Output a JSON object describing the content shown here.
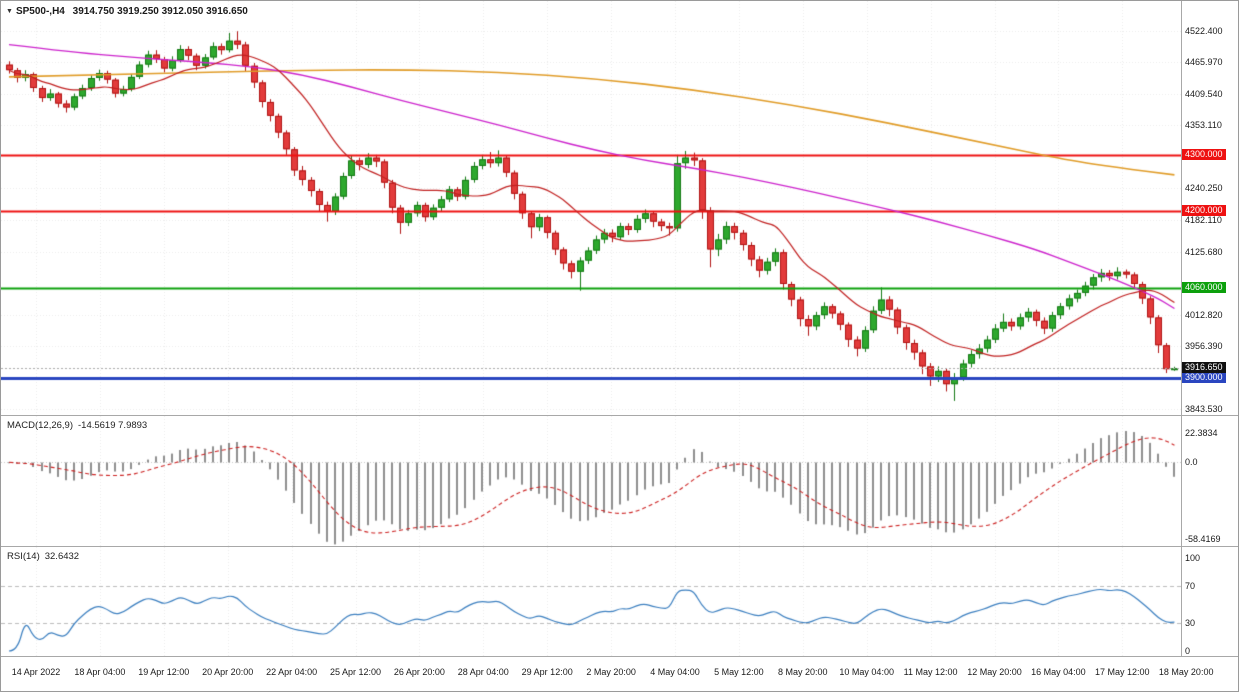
{
  "title": {
    "symbol": "SP500-,H4",
    "ohlc": "3914.750 3919.250 3912.050 3916.650",
    "expand_icon": "down-triangle"
  },
  "colors": {
    "up_fill": "#2ea82e",
    "up_border": "#157a15",
    "down_fill": "#e23b3b",
    "down_border": "#b01414",
    "ma_fast_red": "#c02020",
    "ma_medium_magenta": "#cc22cc",
    "ma_slow_orange": "#e09c28",
    "level_red": "#ee1111",
    "level_green": "#0ca00c",
    "level_blue": "#2a46c0",
    "current_bg": "#111111",
    "current_line": "#aaaaaa",
    "macd_hist": "#8f8f8f",
    "macd_signal": "#cc2222",
    "rsi_line": "#3a7ebf",
    "grid": "#ececec",
    "dash_level": "#bbbbbb"
  },
  "chart_data": [
    {
      "type": "candlestick",
      "title": "SP500-,H4",
      "ohlc_display": {
        "open": "3914.750",
        "high": "3919.250",
        "low": "3912.050",
        "close": "3916.650"
      },
      "y_range": [
        3832.7,
        4576.3
      ],
      "y_ticks": [
        {
          "v": 4522.4,
          "t": "4522.400"
        },
        {
          "v": 4465.97,
          "t": "4465.970"
        },
        {
          "v": 4409.54,
          "t": "4409.540"
        },
        {
          "v": 4353.11,
          "t": "4353.110"
        },
        {
          "v": 4240.25,
          "t": "4240.250"
        },
        {
          "v": 4182.11,
          "t": "4182.110"
        },
        {
          "v": 4125.68,
          "t": "4125.680"
        },
        {
          "v": 4012.82,
          "t": "4012.820"
        },
        {
          "v": 3956.39,
          "t": "3956.390"
        },
        {
          "v": 3843.53,
          "t": "3843.530"
        }
      ],
      "levels": [
        {
          "value": 4300,
          "label": "4300.000",
          "color": "#ee1111",
          "width": 2
        },
        {
          "value": 4200,
          "label": "4200.000",
          "color": "#ee1111",
          "width": 2
        },
        {
          "value": 4060,
          "label": "4060.000",
          "color": "#0ca00c",
          "width": 2
        },
        {
          "value": 3900,
          "label": "3900.000",
          "color": "#2a46c0",
          "width": 3
        }
      ],
      "current_price": {
        "value": 3916.65,
        "label": "3916.650"
      },
      "x_labels": [
        "14 Apr 2022",
        "18 Apr 04:00",
        "19 Apr 12:00",
        "20 Apr 20:00",
        "22 Apr 04:00",
        "25 Apr 12:00",
        "26 Apr 20:00",
        "28 Apr 04:00",
        "29 Apr 12:00",
        "2 May 20:00",
        "4 May 04:00",
        "5 May 12:00",
        "8 May 20:00",
        "10 May 04:00",
        "11 May 12:00",
        "12 May 20:00",
        "16 May 04:00",
        "17 May 12:00",
        "18 May 20:00"
      ],
      "candles": [
        [
          4462,
          4468,
          4446,
          4452
        ],
        [
          4452,
          4456,
          4430,
          4438
        ],
        [
          4438,
          4452,
          4432,
          4445
        ],
        [
          4445,
          4448,
          4413,
          4420
        ],
        [
          4420,
          4424,
          4395,
          4402
        ],
        [
          4402,
          4418,
          4397,
          4410
        ],
        [
          4410,
          4413,
          4385,
          4392
        ],
        [
          4392,
          4398,
          4376,
          4385
        ],
        [
          4385,
          4410,
          4380,
          4405
        ],
        [
          4405,
          4426,
          4400,
          4420
        ],
        [
          4420,
          4443,
          4415,
          4438
        ],
        [
          4438,
          4453,
          4433,
          4447
        ],
        [
          4447,
          4451,
          4428,
          4435
        ],
        [
          4435,
          4438,
          4403,
          4410
        ],
        [
          4410,
          4424,
          4405,
          4418
        ],
        [
          4418,
          4445,
          4414,
          4440
        ],
        [
          4440,
          4468,
          4436,
          4462
        ],
        [
          4462,
          4487,
          4457,
          4480
        ],
        [
          4480,
          4488,
          4465,
          4472
        ],
        [
          4472,
          4476,
          4448,
          4455
        ],
        [
          4455,
          4477,
          4450,
          4470
        ],
        [
          4470,
          4497,
          4466,
          4490
        ],
        [
          4490,
          4495,
          4470,
          4478
        ],
        [
          4478,
          4482,
          4452,
          4460
        ],
        [
          4460,
          4481,
          4455,
          4475
        ],
        [
          4475,
          4502,
          4471,
          4495
        ],
        [
          4495,
          4500,
          4480,
          4488
        ],
        [
          4488,
          4519,
          4484,
          4505
        ],
        [
          4505,
          4522,
          4490,
          4498
        ],
        [
          4498,
          4503,
          4450,
          4460
        ],
        [
          4460,
          4465,
          4420,
          4430
        ],
        [
          4430,
          4434,
          4385,
          4395
        ],
        [
          4395,
          4400,
          4360,
          4370
        ],
        [
          4370,
          4374,
          4330,
          4340
        ],
        [
          4340,
          4344,
          4300,
          4310
        ],
        [
          4310,
          4314,
          4262,
          4272
        ],
        [
          4272,
          4280,
          4245,
          4255
        ],
        [
          4255,
          4260,
          4225,
          4235
        ],
        [
          4235,
          4239,
          4198,
          4210
        ],
        [
          4210,
          4216,
          4180,
          4198
        ],
        [
          4198,
          4231,
          4192,
          4225
        ],
        [
          4225,
          4268,
          4220,
          4262
        ],
        [
          4262,
          4298,
          4257,
          4290
        ],
        [
          4290,
          4295,
          4272,
          4282
        ],
        [
          4282,
          4303,
          4276,
          4295
        ],
        [
          4295,
          4300,
          4278,
          4288
        ],
        [
          4288,
          4292,
          4240,
          4250
        ],
        [
          4250,
          4255,
          4195,
          4205
        ],
        [
          4205,
          4210,
          4158,
          4178
        ],
        [
          4178,
          4201,
          4172,
          4195
        ],
        [
          4195,
          4216,
          4189,
          4210
        ],
        [
          4210,
          4214,
          4180,
          4188
        ],
        [
          4188,
          4211,
          4183,
          4205
        ],
        [
          4205,
          4226,
          4199,
          4220
        ],
        [
          4220,
          4244,
          4215,
          4238
        ],
        [
          4238,
          4242,
          4217,
          4225
        ],
        [
          4225,
          4261,
          4220,
          4255
        ],
        [
          4255,
          4287,
          4250,
          4280
        ],
        [
          4280,
          4300,
          4274,
          4292
        ],
        [
          4292,
          4305,
          4277,
          4285
        ],
        [
          4285,
          4308,
          4279,
          4295
        ],
        [
          4295,
          4298,
          4260,
          4268
        ],
        [
          4268,
          4272,
          4220,
          4230
        ],
        [
          4230,
          4234,
          4185,
          4195
        ],
        [
          4195,
          4199,
          4150,
          4170
        ],
        [
          4170,
          4194,
          4163,
          4188
        ],
        [
          4188,
          4191,
          4150,
          4160
        ],
        [
          4160,
          4164,
          4120,
          4130
        ],
        [
          4130,
          4134,
          4094,
          4105
        ],
        [
          4105,
          4110,
          4078,
          4090
        ],
        [
          4090,
          4116,
          4056,
          4110
        ],
        [
          4110,
          4134,
          4104,
          4128
        ],
        [
          4128,
          4155,
          4122,
          4148
        ],
        [
          4148,
          4167,
          4141,
          4160
        ],
        [
          4160,
          4166,
          4143,
          4152
        ],
        [
          4152,
          4178,
          4147,
          4172
        ],
        [
          4172,
          4177,
          4156,
          4165
        ],
        [
          4165,
          4192,
          4160,
          4185
        ],
        [
          4185,
          4202,
          4178,
          4195
        ],
        [
          4195,
          4199,
          4170,
          4180
        ],
        [
          4180,
          4185,
          4163,
          4172
        ],
        [
          4172,
          4178,
          4155,
          4168
        ],
        [
          4168,
          4300,
          4162,
          4285
        ],
        [
          4285,
          4307,
          4275,
          4295
        ],
        [
          4295,
          4304,
          4280,
          4290
        ],
        [
          4290,
          4294,
          4185,
          4200
        ],
        [
          4200,
          4206,
          4098,
          4130
        ],
        [
          4130,
          4158,
          4118,
          4148
        ],
        [
          4148,
          4180,
          4140,
          4172
        ],
        [
          4172,
          4178,
          4148,
          4160
        ],
        [
          4160,
          4165,
          4128,
          4138
        ],
        [
          4138,
          4143,
          4100,
          4112
        ],
        [
          4112,
          4118,
          4080,
          4092
        ],
        [
          4092,
          4115,
          4085,
          4108
        ],
        [
          4108,
          4132,
          4100,
          4125
        ],
        [
          4125,
          4130,
          4058,
          4068
        ],
        [
          4068,
          4072,
          4028,
          4040
        ],
        [
          4040,
          4045,
          3992,
          4005
        ],
        [
          4005,
          4012,
          3975,
          3992
        ],
        [
          3992,
          4018,
          3985,
          4012
        ],
        [
          4012,
          4035,
          4005,
          4028
        ],
        [
          4028,
          4032,
          4006,
          4015
        ],
        [
          4015,
          4019,
          3985,
          3995
        ],
        [
          3995,
          3999,
          3955,
          3968
        ],
        [
          3968,
          3974,
          3938,
          3952
        ],
        [
          3952,
          3992,
          3946,
          3985
        ],
        [
          3985,
          4028,
          3980,
          4020
        ],
        [
          4020,
          4062,
          4014,
          4040
        ],
        [
          4040,
          4046,
          4010,
          4022
        ],
        [
          4022,
          4026,
          3978,
          3990
        ],
        [
          3990,
          3995,
          3950,
          3962
        ],
        [
          3962,
          3968,
          3932,
          3945
        ],
        [
          3945,
          3950,
          3906,
          3920
        ],
        [
          3920,
          3926,
          3885,
          3902
        ],
        [
          3902,
          3920,
          3892,
          3912
        ],
        [
          3912,
          3916,
          3875,
          3888
        ],
        [
          3888,
          3908,
          3858,
          3900
        ],
        [
          3900,
          3932,
          3894,
          3925
        ],
        [
          3925,
          3949,
          3918,
          3942
        ],
        [
          3942,
          3960,
          3934,
          3952
        ],
        [
          3952,
          3975,
          3945,
          3968
        ],
        [
          3968,
          3996,
          3962,
          3988
        ],
        [
          3988,
          4015,
          3982,
          4000
        ],
        [
          4000,
          4006,
          3984,
          3992
        ],
        [
          3992,
          4015,
          3986,
          4008
        ],
        [
          4008,
          4025,
          4000,
          4018
        ],
        [
          4018,
          4022,
          3992,
          4002
        ],
        [
          4002,
          4008,
          3978,
          3988
        ],
        [
          3988,
          4018,
          3982,
          4012
        ],
        [
          4012,
          4034,
          4005,
          4028
        ],
        [
          4028,
          4049,
          4022,
          4042
        ],
        [
          4042,
          4058,
          4035,
          4052
        ],
        [
          4052,
          4072,
          4046,
          4065
        ],
        [
          4065,
          4086,
          4058,
          4080
        ],
        [
          4080,
          4095,
          4072,
          4088
        ],
        [
          4088,
          4093,
          4074,
          4082
        ],
        [
          4082,
          4098,
          4076,
          4090
        ],
        [
          4090,
          4094,
          4078,
          4085
        ],
        [
          4085,
          4089,
          4060,
          4068
        ],
        [
          4068,
          4072,
          4032,
          4042
        ],
        [
          4042,
          4046,
          3996,
          4008
        ],
        [
          4008,
          4012,
          3944,
          3958
        ],
        [
          3958,
          3962,
          3908,
          3915
        ],
        [
          3914.8,
          3919.3,
          3912.1,
          3916.7
        ]
      ],
      "overlays": [
        {
          "name": "ma-slow-orange",
          "color": "#e09c28",
          "width": 1.6,
          "points": [
            [
              0,
              4440
            ],
            [
              12,
              4444
            ],
            [
              24,
              4448
            ],
            [
              36,
              4452
            ],
            [
              48,
              4453
            ],
            [
              60,
              4449
            ],
            [
              72,
              4437
            ],
            [
              84,
              4417
            ],
            [
              96,
              4390
            ],
            [
              108,
              4357
            ],
            [
              120,
              4320
            ],
            [
              130,
              4290
            ],
            [
              136,
              4277
            ],
            [
              143,
              4264
            ]
          ]
        },
        {
          "name": "ma-medium-magenta",
          "color": "#cc22cc",
          "width": 1.4,
          "points": [
            [
              0,
              4498
            ],
            [
              8,
              4484
            ],
            [
              16,
              4474
            ],
            [
              24,
              4466
            ],
            [
              30,
              4458
            ],
            [
              36,
              4444
            ],
            [
              42,
              4422
            ],
            [
              48,
              4398
            ],
            [
              54,
              4376
            ],
            [
              60,
              4354
            ],
            [
              66,
              4330
            ],
            [
              72,
              4308
            ],
            [
              78,
              4290
            ],
            [
              84,
              4276
            ],
            [
              90,
              4260
            ],
            [
              96,
              4242
            ],
            [
              102,
              4222
            ],
            [
              108,
              4202
            ],
            [
              114,
              4180
            ],
            [
              120,
              4156
            ],
            [
              126,
              4130
            ],
            [
              130,
              4108
            ],
            [
              134,
              4086
            ],
            [
              138,
              4062
            ],
            [
              141,
              4042
            ],
            [
              143,
              4024
            ]
          ]
        },
        {
          "name": "ma-fast-red",
          "color": "#c02020",
          "width": 1.2,
          "derived": "sma",
          "period": 13
        }
      ]
    },
    {
      "type": "macd-histogram",
      "label": "MACD(12,26,9)",
      "params": [
        12,
        26,
        9
      ],
      "values_text": "-14.5619 7.9893",
      "main_value": -14.5619,
      "signal_value": 7.9893,
      "y_range": [
        -64.1,
        35.4
      ],
      "y_ticks": [
        {
          "v": 22.3834,
          "t": "22.3834"
        },
        {
          "v": 0,
          "t": "0.0"
        },
        {
          "v": -58.4169,
          "t": "-58.4169"
        }
      ],
      "derived_from": "candle closes"
    },
    {
      "type": "line",
      "label": "RSI(14)",
      "period": 14,
      "value_text": "32.6432",
      "value": 32.6432,
      "y_range": [
        -5.4,
        111.8
      ],
      "levels": [
        70,
        30
      ],
      "y_ticks": [
        {
          "v": 100,
          "t": "100"
        },
        {
          "v": 70,
          "t": "70"
        },
        {
          "v": 30,
          "t": "30"
        },
        {
          "v": 0,
          "t": "0"
        }
      ],
      "derived_from": "candle closes"
    }
  ]
}
